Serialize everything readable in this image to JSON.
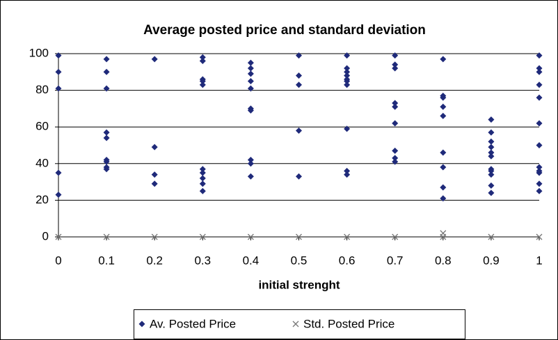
{
  "chart_data": {
    "type": "scatter",
    "title": "Average posted price and standard deviation",
    "x_label": "initial strenght",
    "xlim": [
      0,
      1
    ],
    "xticks": [
      0,
      0.1,
      0.2,
      0.3,
      0.4,
      0.5,
      0.6,
      0.7,
      0.8,
      0.9,
      1
    ],
    "ylim": [
      0,
      100
    ],
    "yticks": [
      0,
      20,
      40,
      60,
      80,
      100
    ],
    "grid": true,
    "legend": "bottom",
    "series": [
      {
        "name": "Av. Posted Price",
        "color": "#1f2a7a",
        "marker": "diamond",
        "x": [
          0,
          0,
          0,
          0,
          0,
          0.1,
          0.1,
          0.1,
          0.1,
          0.1,
          0.1,
          0.1,
          0.1,
          0.1,
          0.2,
          0.2,
          0.2,
          0.2,
          0.3,
          0.3,
          0.3,
          0.3,
          0.3,
          0.3,
          0.3,
          0.3,
          0.3,
          0.3,
          0.4,
          0.4,
          0.4,
          0.4,
          0.4,
          0.4,
          0.4,
          0.4,
          0.4,
          0.4,
          0.5,
          0.5,
          0.5,
          0.5,
          0.5,
          0.6,
          0.6,
          0.6,
          0.6,
          0.6,
          0.6,
          0.6,
          0.6,
          0.6,
          0.6,
          0.7,
          0.7,
          0.7,
          0.7,
          0.7,
          0.7,
          0.7,
          0.7,
          0.7,
          0.8,
          0.8,
          0.8,
          0.8,
          0.8,
          0.8,
          0.8,
          0.8,
          0.8,
          0.9,
          0.9,
          0.9,
          0.9,
          0.9,
          0.9,
          0.9,
          0.9,
          0.9,
          0.9,
          0.9,
          1,
          1,
          1,
          1,
          1,
          1,
          1,
          1,
          1,
          1,
          1,
          1
        ],
        "values": [
          99,
          90,
          81,
          35,
          23,
          97,
          90,
          81,
          57,
          54,
          42,
          41,
          38,
          37,
          97,
          49,
          34,
          29,
          98,
          96,
          86,
          85,
          83,
          37,
          35,
          32,
          29,
          25,
          95,
          92,
          89,
          85,
          81,
          70,
          69,
          42,
          40,
          33,
          99,
          88,
          83,
          58,
          33,
          99,
          92,
          90,
          88,
          86,
          85,
          83,
          59,
          36,
          34,
          99,
          94,
          92,
          73,
          71,
          62,
          47,
          43,
          41,
          97,
          77,
          76,
          71,
          66,
          46,
          38,
          27,
          21,
          64,
          57,
          52,
          49,
          46,
          44,
          37,
          36,
          34,
          28,
          24,
          99,
          92,
          90,
          83,
          76,
          62,
          50,
          38,
          36,
          35,
          29,
          25
        ]
      },
      {
        "name": "Std. Posted Price",
        "color": "#777777",
        "marker": "x",
        "x": [
          0,
          0.1,
          0.2,
          0.3,
          0.4,
          0.5,
          0.6,
          0.7,
          0.8,
          0.8,
          0.9,
          1
        ],
        "values": [
          0,
          0,
          0,
          0,
          0,
          0,
          0,
          0,
          0,
          2,
          0,
          0
        ]
      }
    ]
  }
}
